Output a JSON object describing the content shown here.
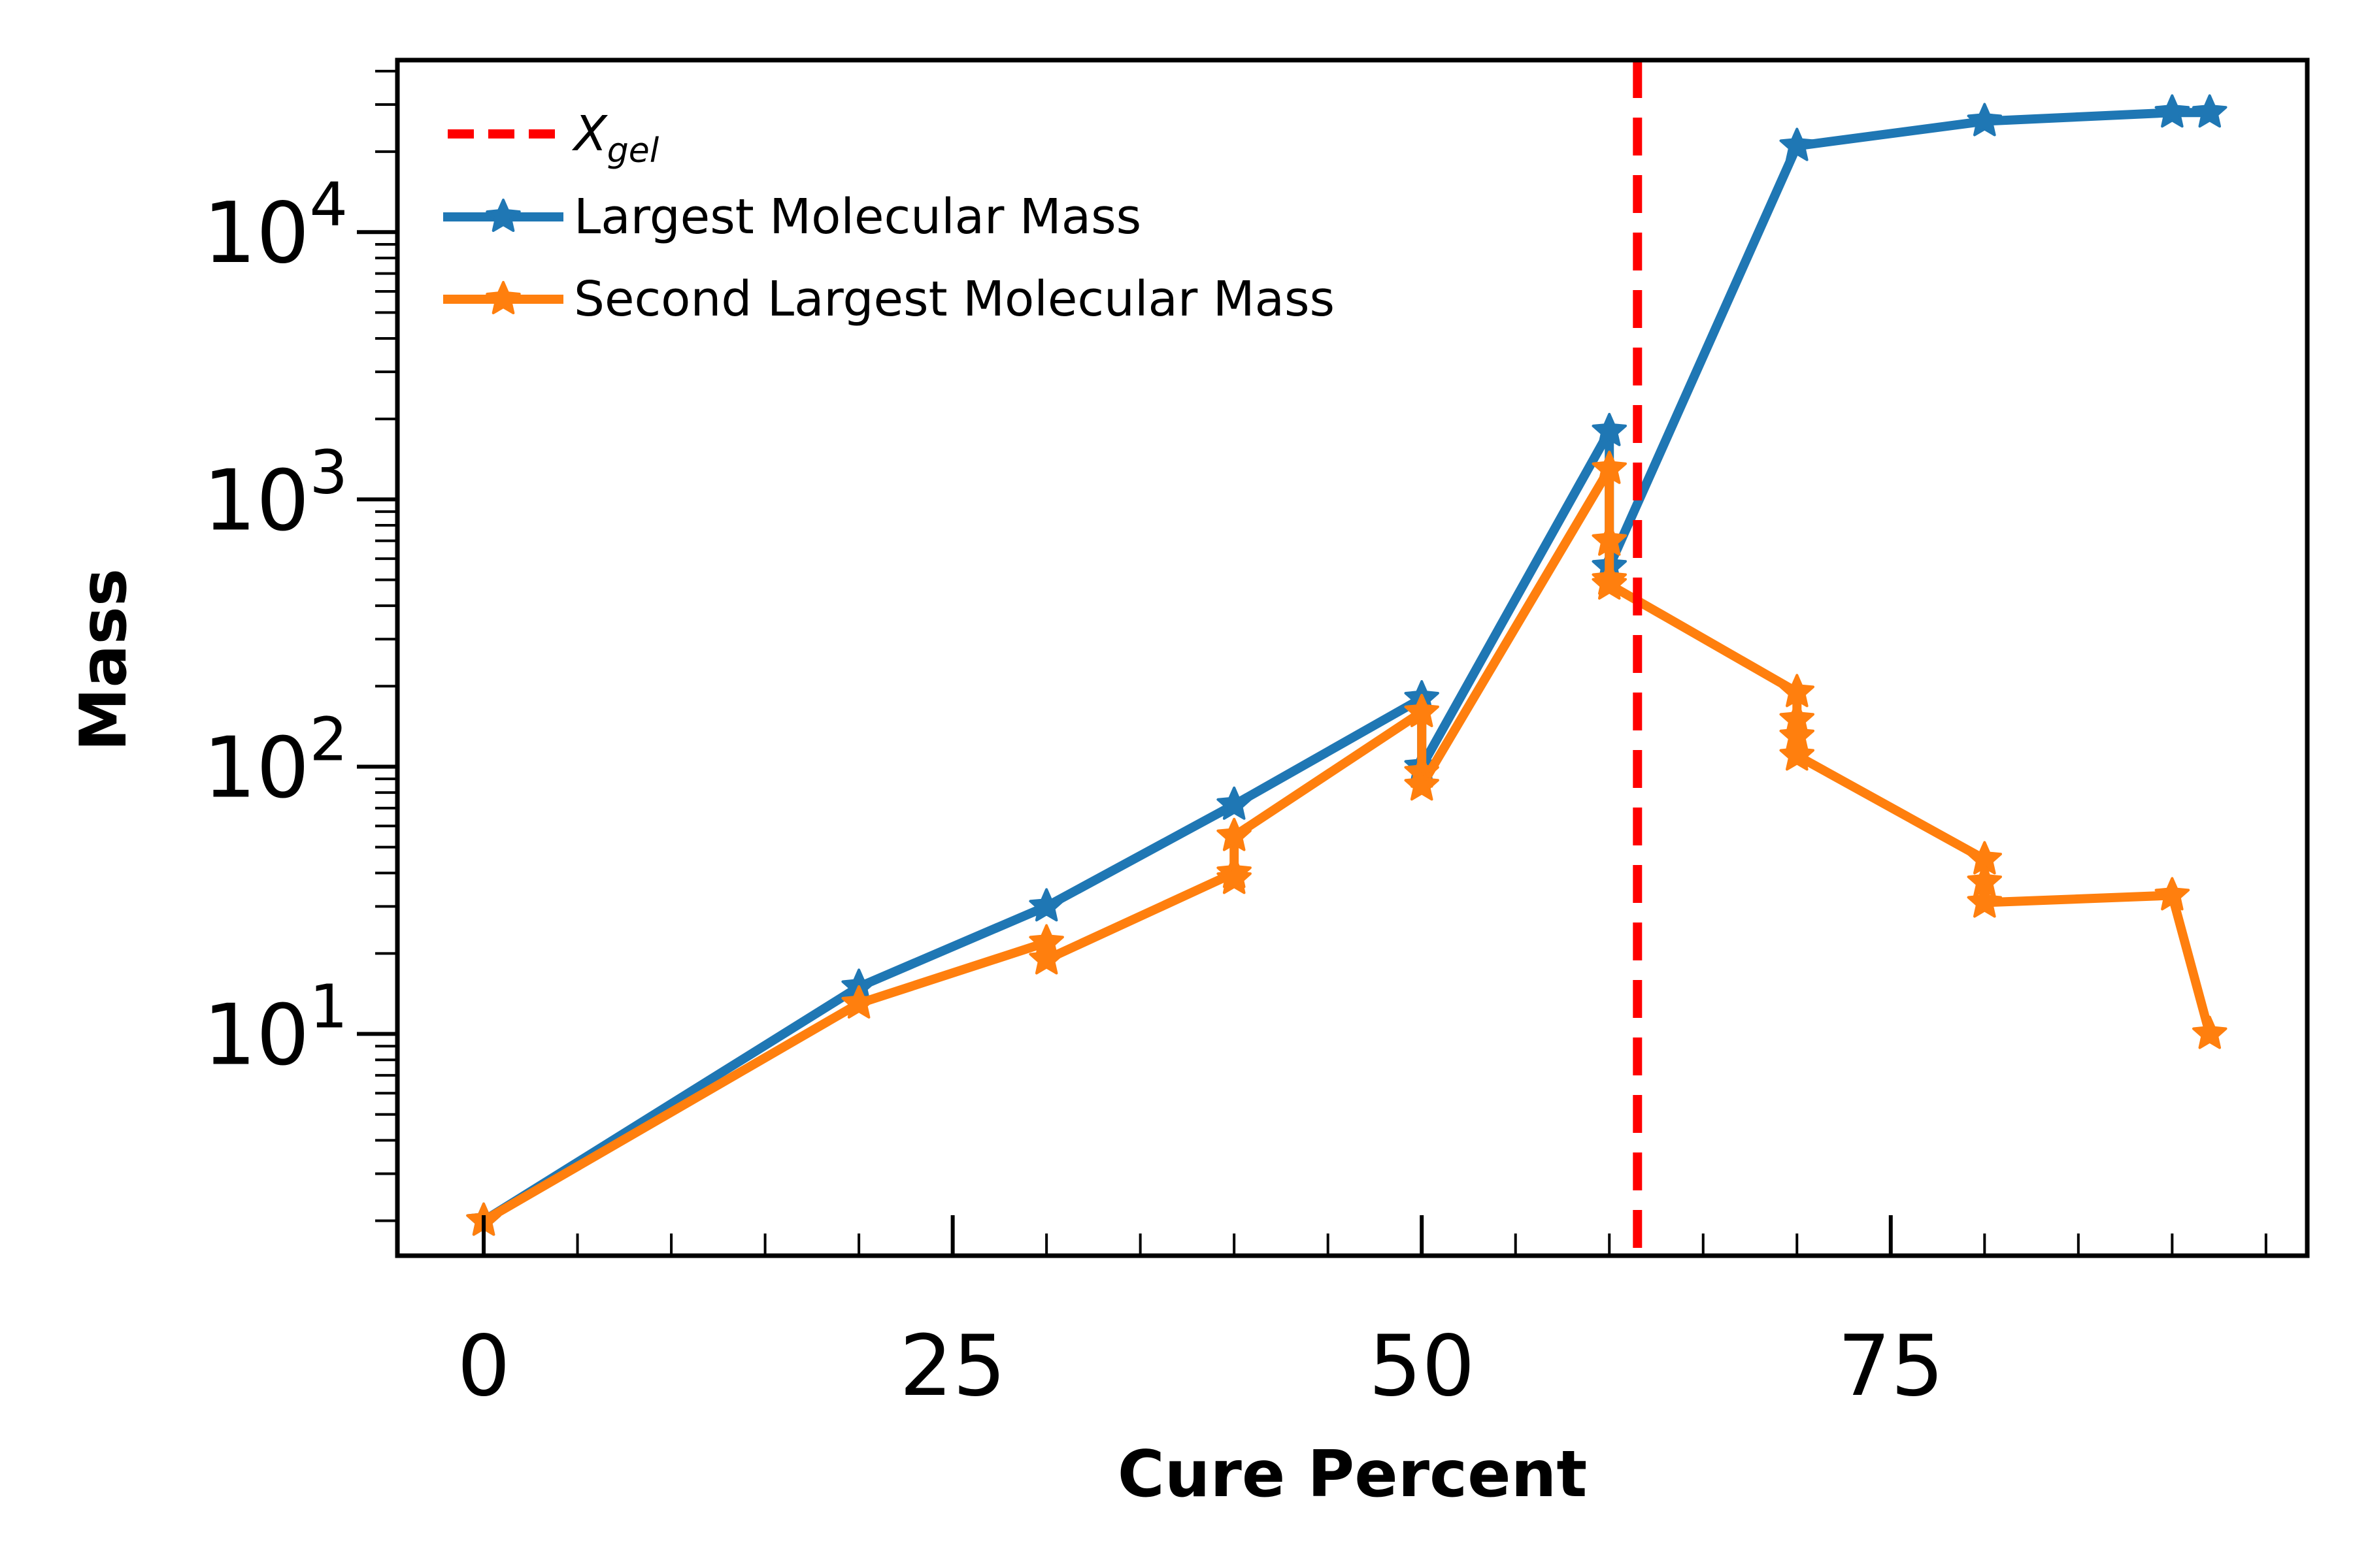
{
  "chart_data": {
    "type": "line",
    "xlabel": "Cure Percent",
    "ylabel": "Mass",
    "xlim": [
      -4.6,
      97.2
    ],
    "ylim": [
      1.48,
      44000
    ],
    "yscale": "log",
    "xticks": [
      0,
      25,
      50,
      75
    ],
    "yticks": [
      10,
      100,
      1000,
      10000
    ],
    "ytick_labels": [
      {
        "base": "10",
        "exp": "1"
      },
      {
        "base": "10",
        "exp": "2"
      },
      {
        "base": "10",
        "exp": "3"
      },
      {
        "base": "10",
        "exp": "4"
      }
    ],
    "vline": {
      "name": "X",
      "name_subscript": "gel",
      "x": 61.5,
      "color": "#ff0000",
      "style": "dashed"
    },
    "series": [
      {
        "name": "Largest Molecular Mass",
        "color": "#1f77b4",
        "marker": "star",
        "x": [
          0,
          20,
          30,
          40,
          50,
          50,
          60,
          60,
          70,
          80,
          90,
          92
        ],
        "y": [
          2,
          15,
          30,
          72,
          180,
          100,
          1800,
          560,
          21000,
          26000,
          28000,
          28000
        ]
      },
      {
        "name": "Second Largest Molecular Mass",
        "color": "#ff7f0e",
        "marker": "star",
        "x": [
          0,
          20,
          30,
          30,
          40,
          40,
          40,
          50,
          50,
          50,
          60,
          60,
          60,
          60,
          70,
          70,
          70,
          70,
          80,
          80,
          80,
          90,
          92
        ],
        "y": [
          2,
          13,
          22,
          19,
          40,
          38,
          55,
          160,
          95,
          85,
          1300,
          700,
          500,
          480,
          190,
          150,
          130,
          110,
          45,
          37,
          31,
          33,
          10
        ]
      }
    ],
    "legend": {
      "placement": "top-left"
    }
  }
}
